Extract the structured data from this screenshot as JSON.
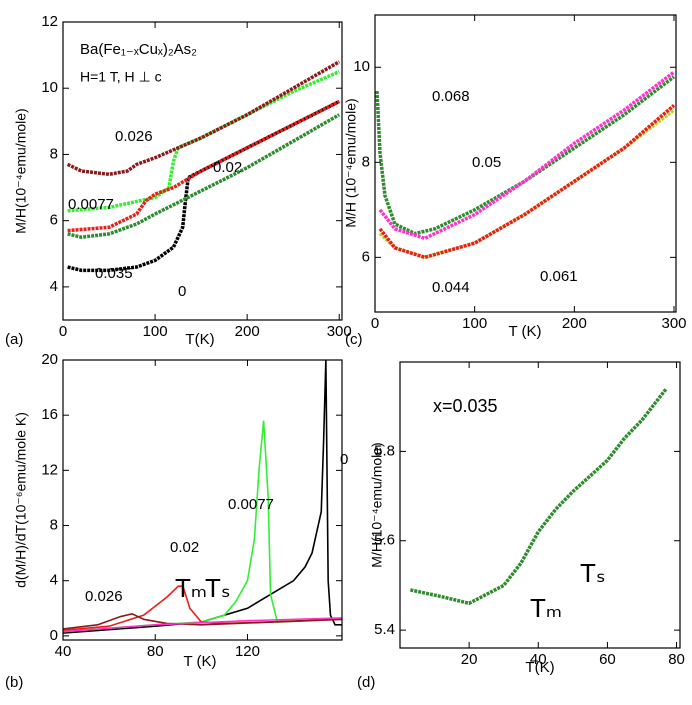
{
  "chart_data": [
    {
      "type": "line",
      "panel_label": "(a)",
      "xlabel": "T(K)",
      "ylabel": "M/H(10⁻⁴emu/mole)",
      "xlim": [
        0,
        303
      ],
      "ylim": [
        3,
        12
      ],
      "xticks": [
        0,
        100,
        200,
        300
      ],
      "yticks": [
        4,
        6,
        8,
        10,
        12
      ],
      "annotations": [
        "Ba(Fe₁₋ₓCuₓ)₂As₂",
        "H=1 T, H ⊥ c"
      ],
      "series": [
        {
          "name": "0",
          "color": "#000000",
          "x": [
            5,
            20,
            50,
            80,
            100,
            120,
            130,
            133,
            136,
            150,
            200,
            250,
            300
          ],
          "values": [
            4.6,
            4.5,
            4.5,
            4.6,
            4.8,
            5.2,
            5.8,
            6.6,
            7.3,
            7.5,
            8.2,
            8.9,
            9.6
          ]
        },
        {
          "name": "0.0077",
          "color": "#33ee33",
          "x": [
            5,
            50,
            100,
            115,
            120,
            125,
            150,
            200,
            250,
            300
          ],
          "values": [
            6.3,
            6.4,
            6.7,
            7.0,
            7.8,
            8.2,
            8.5,
            9.2,
            9.9,
            10.5
          ]
        },
        {
          "name": "0.02",
          "color": "#e8201a",
          "x": [
            5,
            50,
            80,
            90,
            100,
            120,
            150,
            200,
            250,
            300
          ],
          "values": [
            5.7,
            5.8,
            6.2,
            6.6,
            6.8,
            7.0,
            7.5,
            8.2,
            8.9,
            9.6
          ]
        },
        {
          "name": "0.026",
          "color": "#8b1a1a",
          "x": [
            5,
            20,
            50,
            70,
            80,
            100,
            150,
            200,
            250,
            300
          ],
          "values": [
            7.7,
            7.5,
            7.4,
            7.5,
            7.7,
            7.9,
            8.5,
            9.2,
            10.0,
            10.8
          ]
        },
        {
          "name": "0.035",
          "color": "#2e8b2e",
          "x": [
            5,
            20,
            50,
            80,
            100,
            150,
            200,
            250,
            300
          ],
          "values": [
            5.6,
            5.5,
            5.6,
            5.9,
            6.2,
            6.9,
            7.6,
            8.4,
            9.2
          ]
        }
      ]
    },
    {
      "type": "line",
      "panel_label": "(b)",
      "xlabel": "T (K)",
      "ylabel": "d(M/H)/dT(10⁻⁶emu/mole K)",
      "xlim": [
        40,
        161
      ],
      "ylim": [
        -0.3,
        20
      ],
      "xticks": [
        40,
        80,
        120
      ],
      "yticks": [
        0,
        4,
        8,
        12,
        16,
        20
      ],
      "annotations": [
        "Tₘ",
        "Tₛ"
      ],
      "series": [
        {
          "name": "0",
          "color": "#000000",
          "x": [
            40,
            80,
            100,
            120,
            140,
            145,
            148,
            150,
            152,
            153,
            154,
            155,
            156,
            158,
            161
          ],
          "values": [
            0.2,
            0.7,
            1.0,
            2.0,
            4.0,
            5,
            6,
            7.5,
            9,
            14,
            20,
            4,
            1.5,
            0.8,
            0.8
          ]
        },
        {
          "name": "0.0077",
          "color": "#33ee33",
          "x": [
            40,
            80,
            100,
            110,
            115,
            120,
            123,
            125,
            127,
            129,
            130,
            133,
            161
          ],
          "values": [
            0.3,
            0.8,
            1.0,
            1.5,
            2.5,
            4,
            7,
            12,
            15.6,
            10,
            3,
            1,
            1.2
          ]
        },
        {
          "name": "0.02",
          "color": "#e8201a",
          "x": [
            40,
            60,
            75,
            85,
            90,
            92,
            95,
            100,
            110,
            161
          ],
          "values": [
            0.4,
            0.7,
            1.5,
            2.8,
            3.6,
            3.6,
            2,
            1,
            0.9,
            1.2
          ]
        },
        {
          "name": "0.026",
          "color": "#8b1a1a",
          "x": [
            40,
            55,
            65,
            70,
            75,
            85,
            100,
            161
          ],
          "values": [
            0.5,
            0.8,
            1.4,
            1.6,
            1.2,
            0.9,
            0.8,
            1.2
          ]
        },
        {
          "color": "#ff33cc",
          "x": [
            40,
            80,
            120,
            161
          ],
          "values": [
            0.3,
            0.8,
            1.1,
            1.3
          ]
        }
      ]
    },
    {
      "type": "line",
      "panel_label": "(c)",
      "xlabel": "T (K)",
      "ylabel": "M/H (10⁻⁴emu/mole)",
      "xlim": [
        0,
        302
      ],
      "ylim": [
        4.85,
        11.1
      ],
      "xticks": [
        0,
        100,
        200,
        300
      ],
      "yticks": [
        6,
        8,
        10
      ],
      "series": [
        {
          "name": "0.068",
          "color": "#2e8b2e",
          "x": [
            2,
            5,
            10,
            20,
            40,
            60,
            100,
            150,
            200,
            250,
            300
          ],
          "values": [
            9.5,
            8.2,
            7.3,
            6.7,
            6.5,
            6.6,
            7.0,
            7.6,
            8.3,
            9.0,
            9.8
          ]
        },
        {
          "name": "0.05",
          "color": "#ff33cc",
          "x": [
            5,
            20,
            50,
            100,
            150,
            200,
            250,
            300
          ],
          "values": [
            7.0,
            6.6,
            6.4,
            6.9,
            7.6,
            8.4,
            9.1,
            9.9
          ]
        },
        {
          "name": "0.044",
          "color": "#b6d72e",
          "x": [
            5,
            20,
            50,
            100,
            150,
            200,
            250,
            300
          ],
          "values": [
            6.5,
            6.2,
            6.0,
            6.3,
            6.9,
            7.6,
            8.3,
            9.1
          ]
        },
        {
          "name": "0.061",
          "color": "#e8201a",
          "x": [
            5,
            20,
            50,
            100,
            150,
            200,
            250,
            300
          ],
          "values": [
            6.6,
            6.2,
            6.0,
            6.3,
            6.9,
            7.6,
            8.3,
            9.2
          ]
        }
      ]
    },
    {
      "type": "line",
      "panel_label": "(d)",
      "xlabel": "T(K)",
      "ylabel": "M/H(10⁻⁴emu/mole)",
      "xlim": [
        0,
        81
      ],
      "ylim": [
        5.36,
        6.0
      ],
      "xticks": [
        20,
        40,
        60,
        80
      ],
      "yticks": [
        5.4,
        5.6,
        5.8
      ],
      "annotations": [
        "x=0.035",
        "Tₘ",
        "Tₛ"
      ],
      "series": [
        {
          "color": "#2e8b2e",
          "x": [
            3,
            12,
            20,
            30,
            35,
            40,
            45,
            50,
            55,
            60,
            65,
            70,
            75,
            77
          ],
          "values": [
            5.49,
            5.475,
            5.46,
            5.5,
            5.55,
            5.62,
            5.67,
            5.71,
            5.745,
            5.78,
            5.83,
            5.87,
            5.92,
            5.94
          ]
        }
      ]
    }
  ]
}
